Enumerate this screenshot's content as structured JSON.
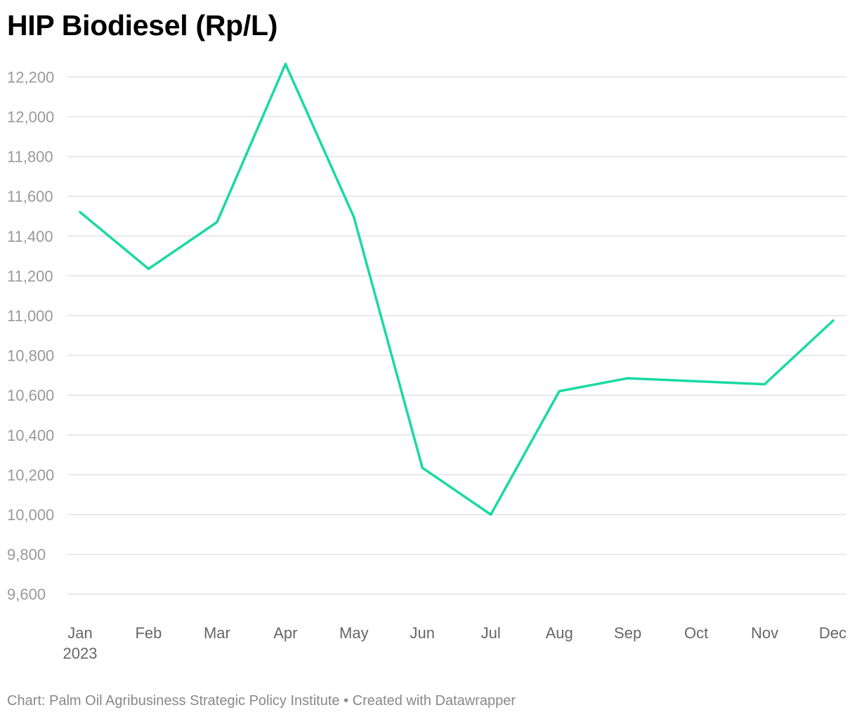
{
  "title": "HIP Biodiesel (Rp/L)",
  "footer": {
    "source": "Chart: Palm Oil Agribusiness Strategic Policy Institute",
    "separator": "•",
    "credit": "Created with Datawrapper"
  },
  "colors": {
    "line": "#1ad9a2",
    "grid": "#e3e3e3",
    "tick_text": "#999999",
    "x_tick_text": "#666666",
    "footer_text": "#888888"
  },
  "chart_data": {
    "type": "line",
    "title": "HIP Biodiesel (Rp/L)",
    "xlabel": "",
    "ylabel": "",
    "categories": [
      "Jan",
      "Feb",
      "Mar",
      "Apr",
      "May",
      "Jun",
      "Jul",
      "Aug",
      "Sep",
      "Oct",
      "Nov",
      "Dec"
    ],
    "year_label": "2023",
    "series": [
      {
        "values": [
          11520,
          11235,
          11470,
          12265,
          11495,
          10235,
          10000,
          10620,
          10685,
          10670,
          10655,
          10975
        ]
      }
    ],
    "ylim": [
      9500,
      12300
    ],
    "yticks": [
      9600,
      9800,
      10000,
      10200,
      10400,
      10600,
      10800,
      11000,
      11200,
      11400,
      11600,
      11800,
      12000,
      12200
    ],
    "grid": true,
    "legend": "none"
  }
}
